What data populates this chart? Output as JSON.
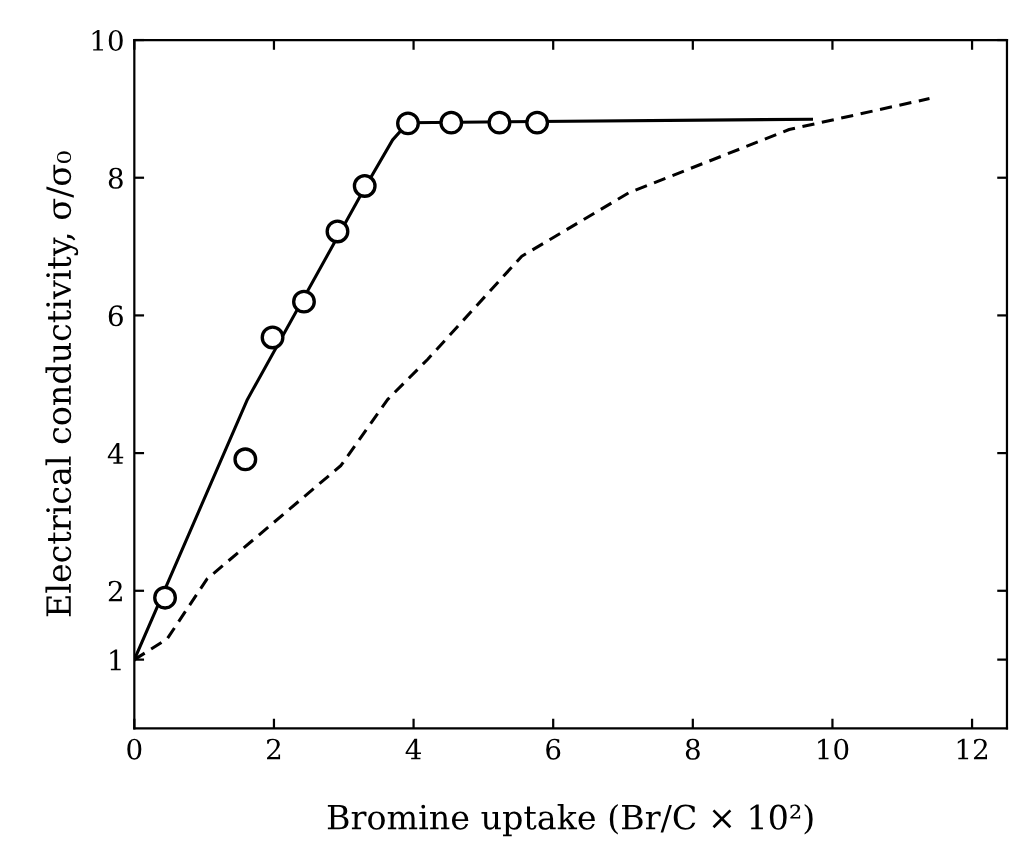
{
  "chart_data": {
    "type": "line",
    "xlabel": "Bromine uptake (Br/C × 10²)",
    "ylabel": "Electrical conductivity, σ/σ₀",
    "xlim": [
      0,
      12.5
    ],
    "ylim": [
      0,
      10
    ],
    "xticks": [
      0,
      2,
      4,
      6,
      8,
      10,
      12
    ],
    "yticks": [
      1,
      2,
      4,
      6,
      8,
      10
    ],
    "grid": false,
    "legend": false,
    "series": [
      {
        "type": "scatter",
        "color": "#000000",
        "marker": "circle",
        "x": [
          0.44,
          1.59,
          1.98,
          2.43,
          2.91,
          3.3,
          3.92,
          4.54,
          5.23,
          5.77
        ],
        "values": [
          1.9,
          3.91,
          5.68,
          6.2,
          7.22,
          7.88,
          8.79,
          8.8,
          8.8,
          8.8
        ]
      },
      {
        "color": "#000000",
        "line_style": "solid",
        "marker": "none",
        "x": [
          0,
          1.62,
          3.3,
          3.7,
          3.92,
          9.7
        ],
        "values": [
          1,
          4.78,
          7.85,
          8.55,
          8.8,
          8.85
        ]
      },
      {
        "color": "#000000",
        "line_style": "dashed",
        "marker": "none",
        "x": [
          0,
          0.47,
          1.04,
          2.96,
          3.63,
          4.2,
          5.55,
          7.08,
          9.38,
          11.39
        ],
        "values": [
          1,
          1.3,
          2.17,
          3.82,
          4.78,
          5.36,
          6.86,
          7.78,
          8.7,
          9.15
        ]
      }
    ]
  }
}
